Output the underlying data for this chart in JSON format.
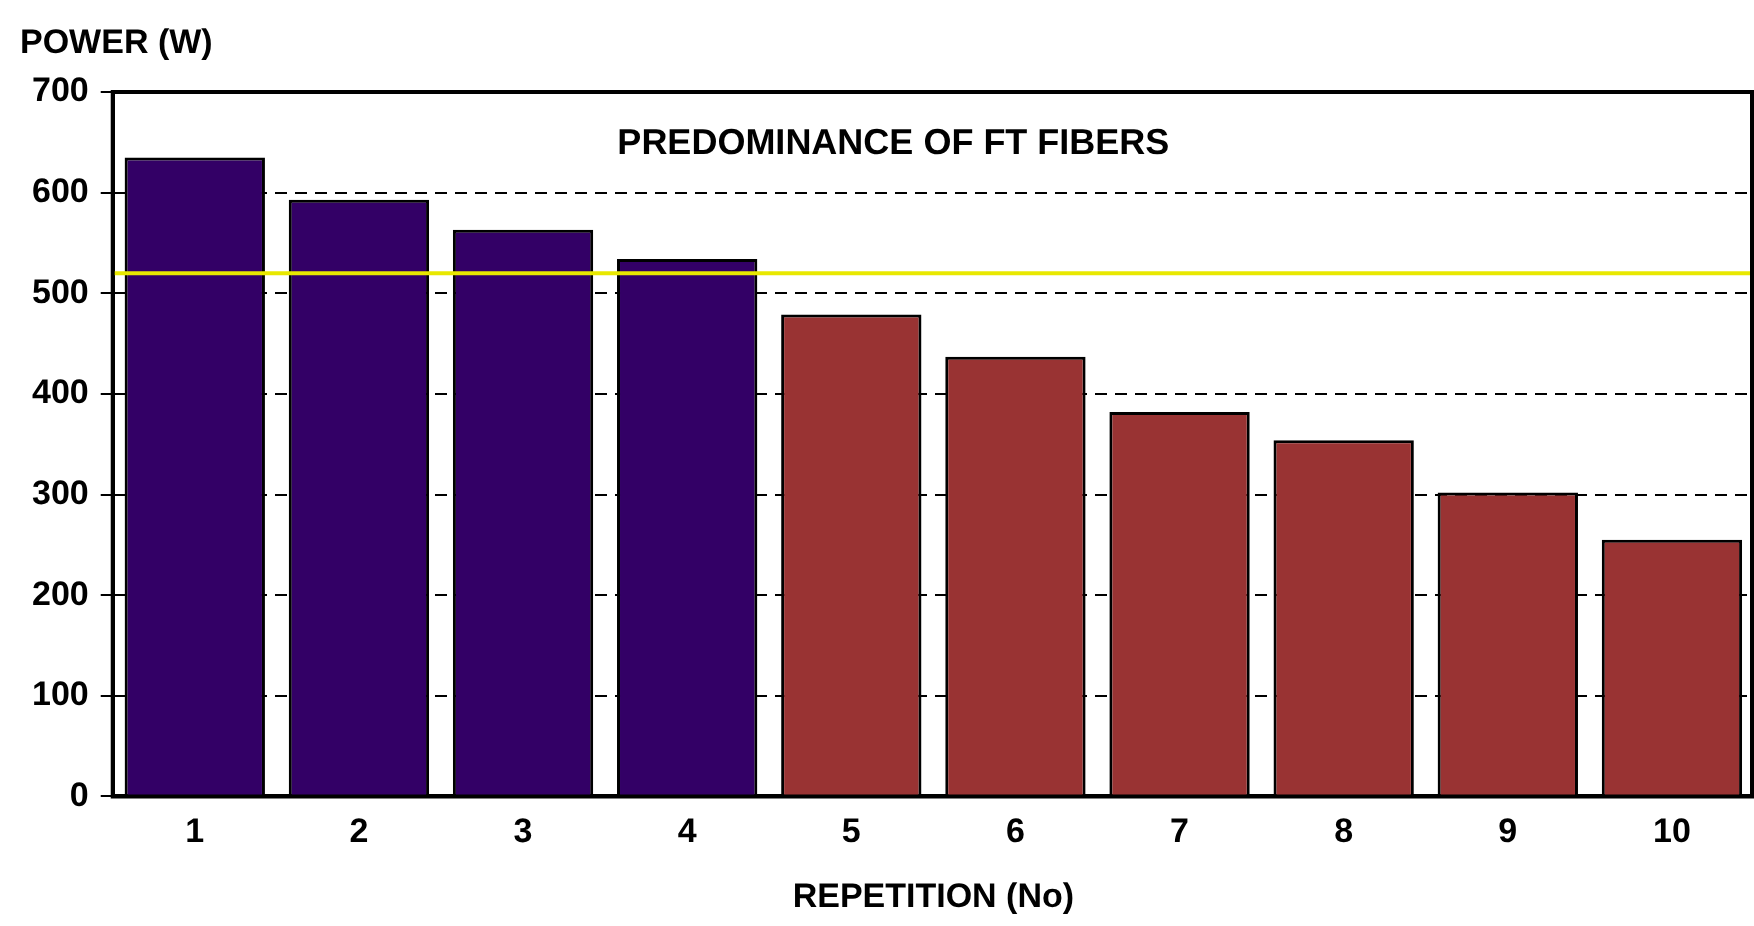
{
  "chart_data": {
    "type": "bar",
    "xlabel": "REPETITION (No)",
    "ylabel": "POWER (W)",
    "categories": [
      "1",
      "2",
      "3",
      "4",
      "5",
      "6",
      "7",
      "8",
      "9",
      "10"
    ],
    "values": [
      635,
      593,
      563,
      534,
      479,
      437,
      382,
      354,
      302,
      255
    ],
    "colors": [
      "#330066",
      "#330066",
      "#330066",
      "#330066",
      "#993333",
      "#993333",
      "#993333",
      "#993333",
      "#993333",
      "#993333"
    ],
    "ylim": [
      0,
      700
    ],
    "yticks": [
      0,
      100,
      200,
      300,
      400,
      500,
      600,
      700
    ],
    "grid": "y",
    "legend": false,
    "ref_lines": [
      {
        "axis": "y",
        "value": 520,
        "color": "#e8e800"
      }
    ],
    "annotations": [
      "PREDOMINANCE OF FT FIBERS"
    ]
  }
}
